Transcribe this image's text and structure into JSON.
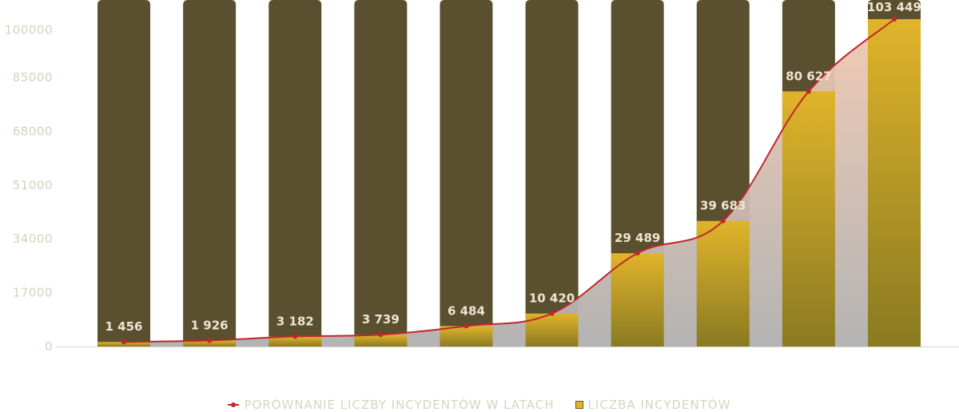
{
  "chart_data": {
    "type": "bar",
    "ylim": [
      0,
      103449
    ],
    "yticks": [
      0,
      17000,
      34000,
      51000,
      68000,
      85000,
      100000
    ],
    "series": [
      {
        "name": "LICZBA INCYDENTÓW",
        "type": "bar",
        "values": [
          1456,
          1926,
          3182,
          3739,
          6484,
          10420,
          29489,
          39683,
          80627,
          103449
        ]
      },
      {
        "name": "PORÓWNANIE LICZBY INCYDENTÓW W LATACH",
        "type": "line",
        "values": [
          1456,
          1926,
          3182,
          3739,
          6484,
          10420,
          29489,
          39683,
          80627,
          103449
        ]
      }
    ],
    "data_labels": [
      "1 456",
      "1 926",
      "3 182",
      "3 739",
      "6 484",
      "10 420",
      "29 489",
      "39 683",
      "80 627",
      "103 449"
    ],
    "grid": false,
    "legend_position": "bottom-center"
  },
  "colors": {
    "bar_background": "#5a4f2e",
    "bar_fill_top": "#e0b42a",
    "bar_fill_bottom": "#8a7a22",
    "line": "#c0262b",
    "area_top": "#f0c8b0",
    "area_bottom": "#b0b0b0"
  },
  "legend": {
    "line_label": "PORÓWNANIE LICZBY INCYDENTÓW W LATACH",
    "bar_label": "LICZBA INCYDENTÓW"
  }
}
